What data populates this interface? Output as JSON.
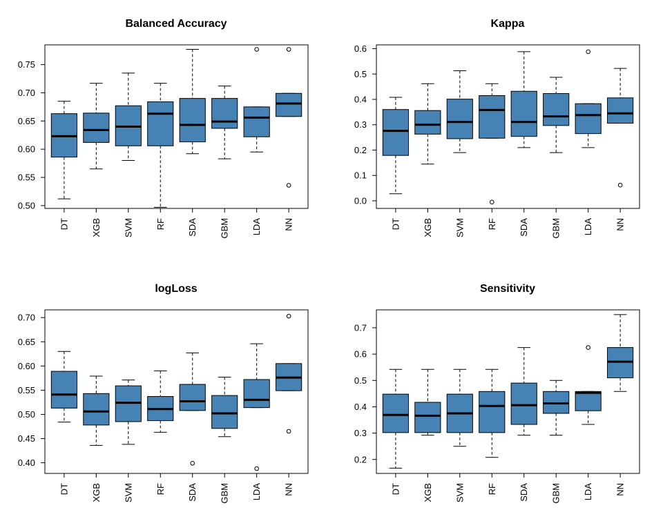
{
  "chart_data": [
    {
      "type": "box",
      "title": "Balanced Accuracy",
      "categories": [
        "DT",
        "XGB",
        "SVM",
        "RF",
        "SDA",
        "GBM",
        "LDA",
        "NN"
      ],
      "yticks": [
        "0.50",
        "0.55",
        "0.60",
        "0.65",
        "0.70",
        "0.75"
      ],
      "ylim": [
        0.495,
        0.785
      ],
      "box_color": "#4682B4",
      "boxes": [
        {
          "min": 0.512,
          "q1": 0.586,
          "median": 0.623,
          "q3": 0.663,
          "max": 0.685,
          "outliers": []
        },
        {
          "min": 0.565,
          "q1": 0.612,
          "median": 0.634,
          "q3": 0.664,
          "max": 0.717,
          "outliers": []
        },
        {
          "min": 0.58,
          "q1": 0.606,
          "median": 0.64,
          "q3": 0.677,
          "max": 0.735,
          "outliers": []
        },
        {
          "min": 0.497,
          "q1": 0.606,
          "median": 0.663,
          "q3": 0.684,
          "max": 0.717,
          "outliers": []
        },
        {
          "min": 0.592,
          "q1": 0.613,
          "median": 0.643,
          "q3": 0.69,
          "max": 0.777,
          "outliers": []
        },
        {
          "min": 0.583,
          "q1": 0.637,
          "median": 0.649,
          "q3": 0.69,
          "max": 0.712,
          "outliers": []
        },
        {
          "min": 0.595,
          "q1": 0.622,
          "median": 0.656,
          "q3": 0.675,
          "max": 0.675,
          "outliers": [
            0.777
          ]
        },
        {
          "min": 0.658,
          "q1": 0.658,
          "median": 0.681,
          "q3": 0.699,
          "max": 0.699,
          "outliers": [
            0.777,
            0.536
          ]
        }
      ]
    },
    {
      "type": "box",
      "title": "Kappa",
      "categories": [
        "DT",
        "XGB",
        "SVM",
        "RF",
        "SDA",
        "GBM",
        "LDA",
        "NN"
      ],
      "yticks": [
        "0.0",
        "0.1",
        "0.2",
        "0.3",
        "0.4",
        "0.5",
        "0.6"
      ],
      "ylim": [
        -0.03,
        0.615
      ],
      "box_color": "#4682B4",
      "boxes": [
        {
          "min": 0.028,
          "q1": 0.179,
          "median": 0.276,
          "q3": 0.36,
          "max": 0.408,
          "outliers": []
        },
        {
          "min": 0.145,
          "q1": 0.263,
          "median": 0.3,
          "q3": 0.356,
          "max": 0.462,
          "outliers": []
        },
        {
          "min": 0.19,
          "q1": 0.245,
          "median": 0.311,
          "q3": 0.401,
          "max": 0.513,
          "outliers": []
        },
        {
          "min": 0.247,
          "q1": 0.247,
          "median": 0.358,
          "q3": 0.415,
          "max": 0.462,
          "outliers": [
            -0.005
          ]
        },
        {
          "min": 0.21,
          "q1": 0.254,
          "median": 0.311,
          "q3": 0.432,
          "max": 0.588,
          "outliers": []
        },
        {
          "min": 0.19,
          "q1": 0.297,
          "median": 0.333,
          "q3": 0.423,
          "max": 0.487,
          "outliers": []
        },
        {
          "min": 0.21,
          "q1": 0.265,
          "median": 0.338,
          "q3": 0.383,
          "max": 0.383,
          "outliers": [
            0.588
          ]
        },
        {
          "min": 0.306,
          "q1": 0.306,
          "median": 0.345,
          "q3": 0.406,
          "max": 0.522,
          "outliers": [
            0.062
          ]
        }
      ]
    },
    {
      "type": "box",
      "title": "logLoss",
      "categories": [
        "DT",
        "XGB",
        "SVM",
        "RF",
        "SDA",
        "GBM",
        "LDA",
        "NN"
      ],
      "yticks": [
        "0.40",
        "0.45",
        "0.50",
        "0.55",
        "0.60",
        "0.65",
        "0.70"
      ],
      "ylim": [
        0.378,
        0.716
      ],
      "box_color": "#4682B4",
      "boxes": [
        {
          "min": 0.484,
          "q1": 0.513,
          "median": 0.541,
          "q3": 0.589,
          "max": 0.63,
          "outliers": []
        },
        {
          "min": 0.436,
          "q1": 0.478,
          "median": 0.506,
          "q3": 0.543,
          "max": 0.579,
          "outliers": []
        },
        {
          "min": 0.438,
          "q1": 0.485,
          "median": 0.524,
          "q3": 0.559,
          "max": 0.571,
          "outliers": []
        },
        {
          "min": 0.463,
          "q1": 0.487,
          "median": 0.511,
          "q3": 0.537,
          "max": 0.59,
          "outliers": []
        },
        {
          "min": 0.508,
          "q1": 0.508,
          "median": 0.527,
          "q3": 0.562,
          "max": 0.627,
          "outliers": [
            0.399
          ]
        },
        {
          "min": 0.454,
          "q1": 0.471,
          "median": 0.502,
          "q3": 0.539,
          "max": 0.577,
          "outliers": []
        },
        {
          "min": 0.514,
          "q1": 0.514,
          "median": 0.53,
          "q3": 0.572,
          "max": 0.646,
          "outliers": [
            0.388
          ]
        },
        {
          "min": 0.549,
          "q1": 0.549,
          "median": 0.576,
          "q3": 0.605,
          "max": 0.605,
          "outliers": [
            0.703,
            0.465
          ]
        }
      ]
    },
    {
      "type": "box",
      "title": "Sensitivity",
      "categories": [
        "DT",
        "XGB",
        "SVM",
        "RF",
        "SDA",
        "GBM",
        "LDA",
        "NN"
      ],
      "yticks": [
        "0.2",
        "0.3",
        "0.4",
        "0.5",
        "0.6",
        "0.7"
      ],
      "ylim": [
        0.147,
        0.768
      ],
      "box_color": "#4682B4",
      "boxes": [
        {
          "min": 0.167,
          "q1": 0.302,
          "median": 0.369,
          "q3": 0.448,
          "max": 0.542,
          "outliers": []
        },
        {
          "min": 0.292,
          "q1": 0.302,
          "median": 0.366,
          "q3": 0.417,
          "max": 0.542,
          "outliers": []
        },
        {
          "min": 0.25,
          "q1": 0.302,
          "median": 0.375,
          "q3": 0.448,
          "max": 0.542,
          "outliers": []
        },
        {
          "min": 0.208,
          "q1": 0.302,
          "median": 0.403,
          "q3": 0.458,
          "max": 0.542,
          "outliers": []
        },
        {
          "min": 0.292,
          "q1": 0.333,
          "median": 0.406,
          "q3": 0.49,
          "max": 0.625,
          "outliers": []
        },
        {
          "min": 0.292,
          "q1": 0.375,
          "median": 0.413,
          "q3": 0.458,
          "max": 0.5,
          "outliers": []
        },
        {
          "min": 0.333,
          "q1": 0.385,
          "median": 0.453,
          "q3": 0.458,
          "max": 0.458,
          "outliers": [
            0.625
          ]
        },
        {
          "min": 0.458,
          "q1": 0.51,
          "median": 0.571,
          "q3": 0.625,
          "max": 0.75,
          "outliers": []
        }
      ]
    }
  ]
}
